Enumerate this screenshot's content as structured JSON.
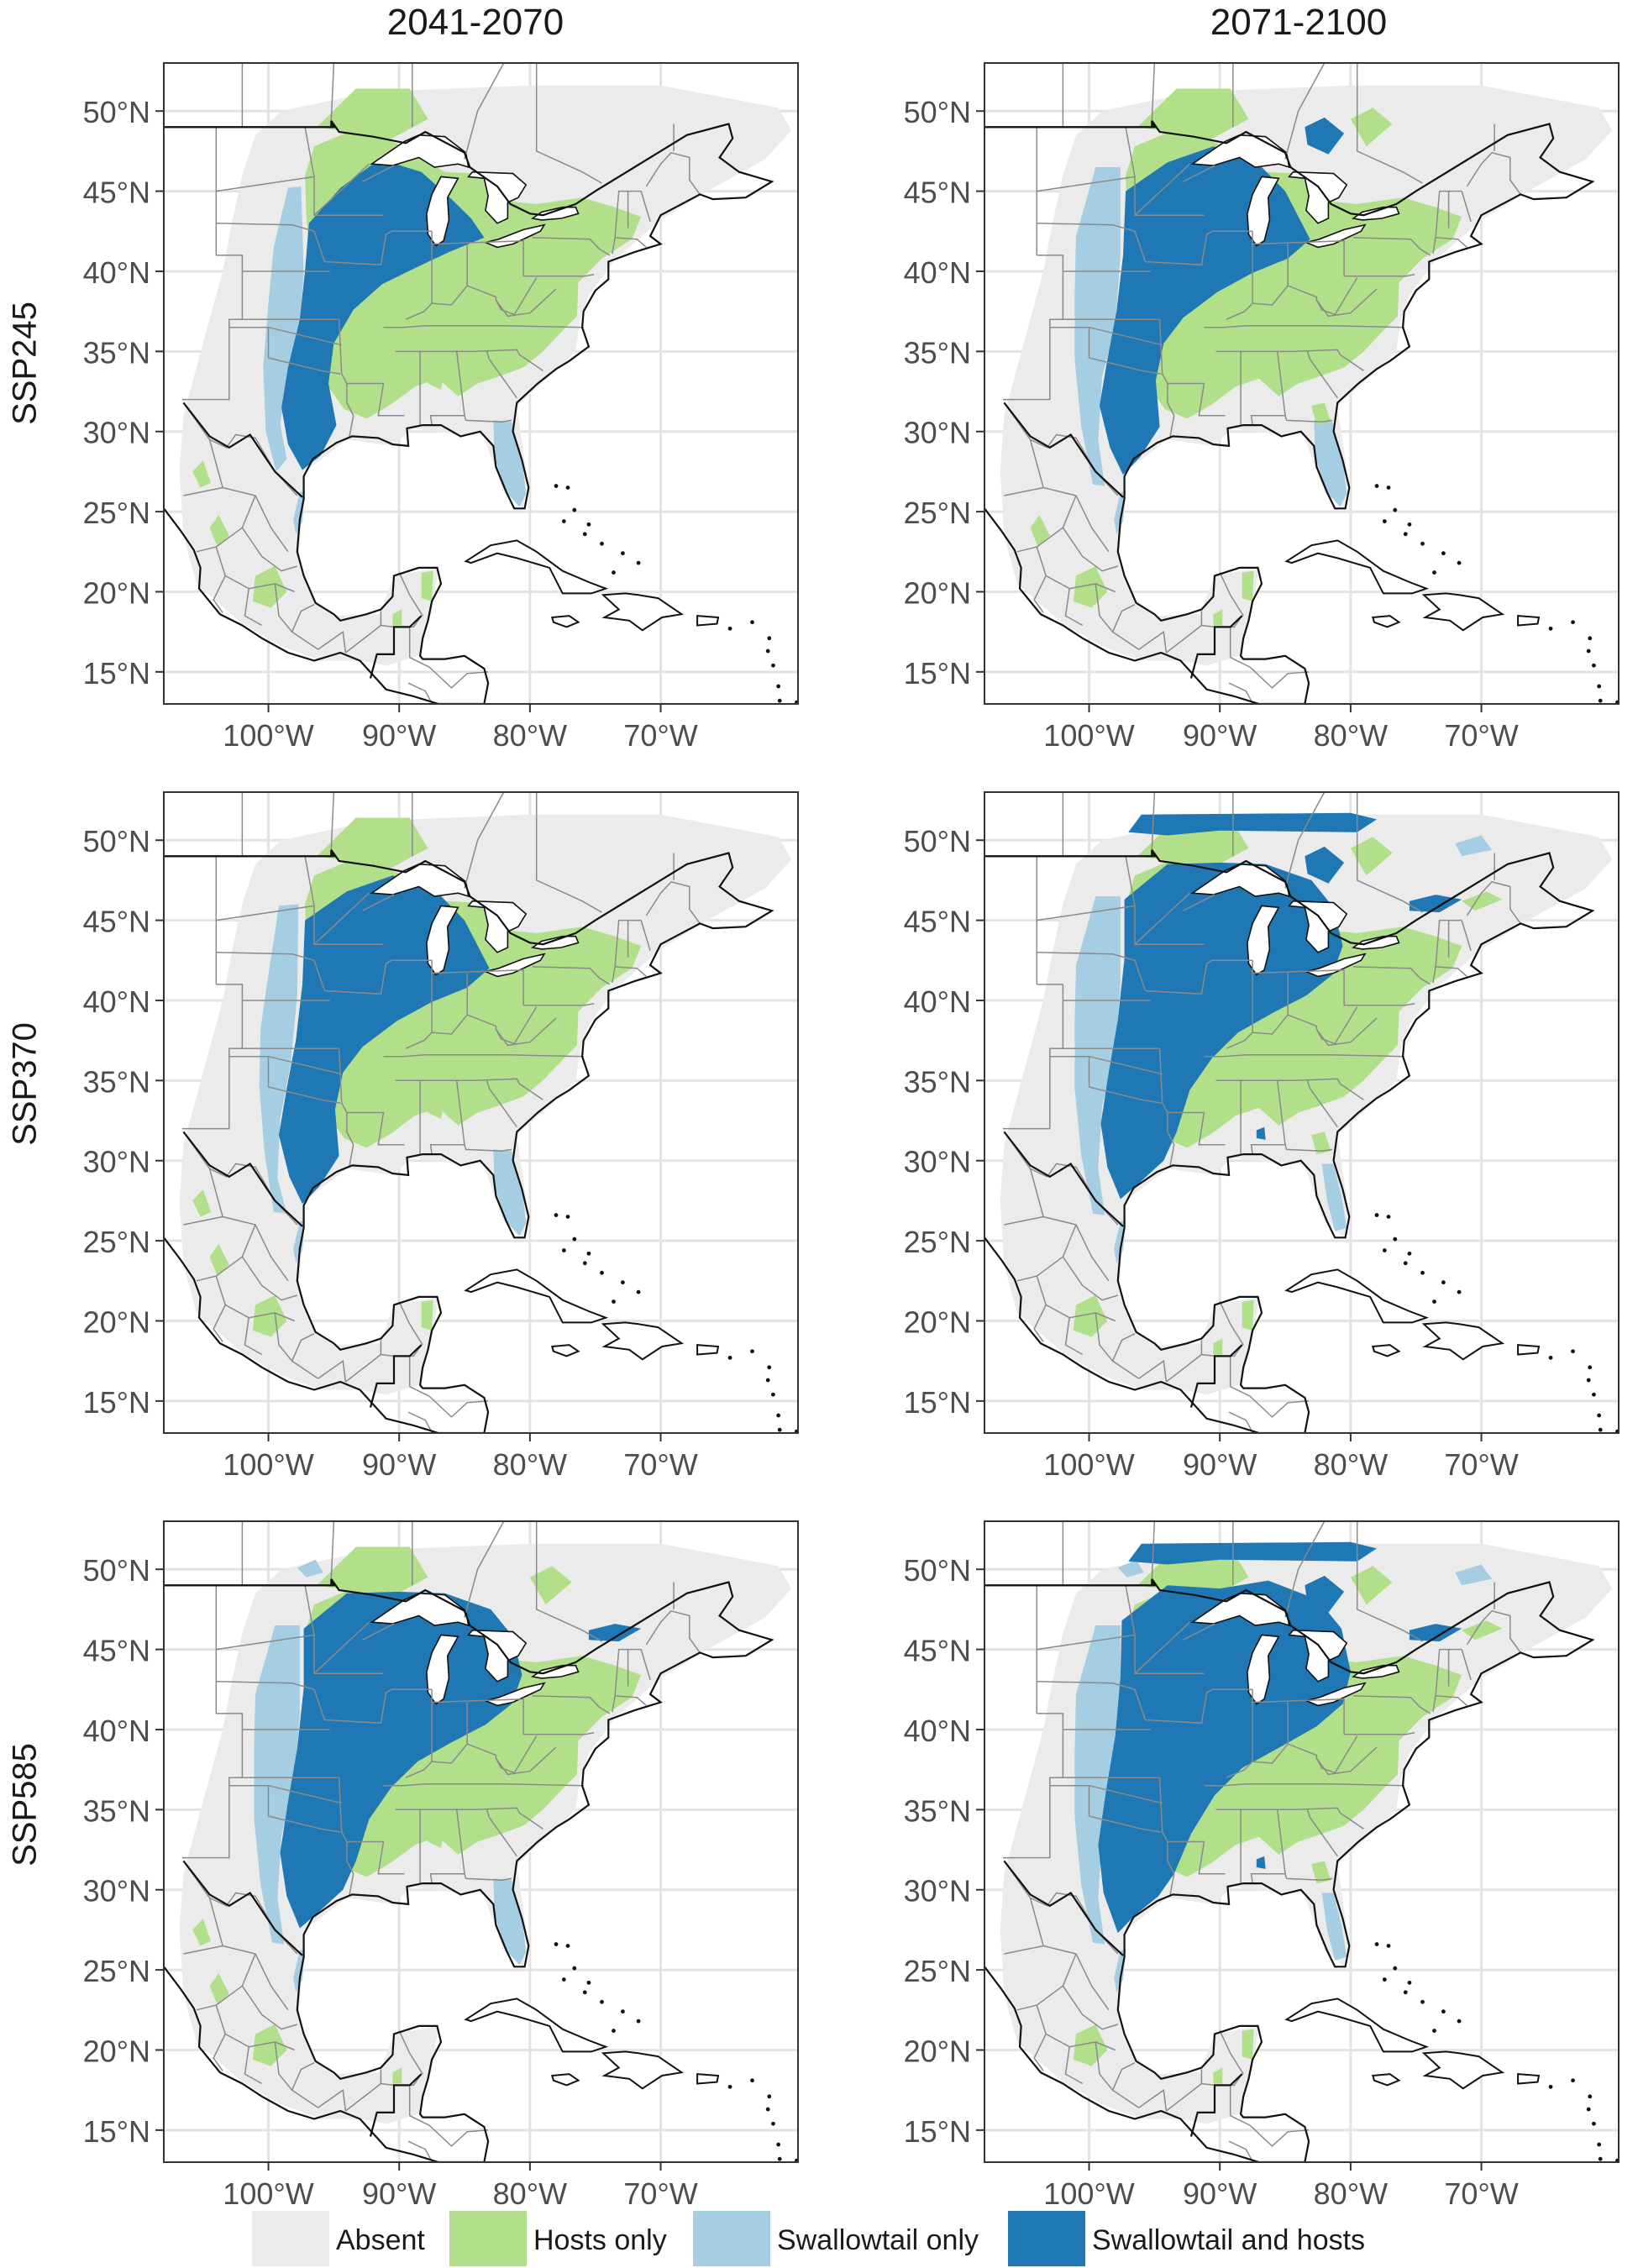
{
  "columns": [
    "2041-2070",
    "2071-2100"
  ],
  "rows": [
    "SSP245",
    "SSP370",
    "SSP585"
  ],
  "axes": {
    "lat_ticks": [
      "50°N",
      "45°N",
      "40°N",
      "35°N",
      "30°N",
      "25°N",
      "20°N",
      "15°N"
    ],
    "lon_ticks": [
      "100°W",
      "90°W",
      "80°W",
      "70°W"
    ],
    "lat_range": [
      13,
      53
    ],
    "lon_range": [
      -108,
      -59.5
    ]
  },
  "legend": [
    {
      "label": "Absent",
      "color": "#ebebeb"
    },
    {
      "label": "Hosts only",
      "color": "#b2df8a"
    },
    {
      "label": "Swallowtail only",
      "color": "#a6cee3"
    },
    {
      "label": "Swallowtail and hosts",
      "color": "#1f78b4"
    }
  ],
  "colors": {
    "grid": "#e3e3e3",
    "panel_border": "#333333",
    "coast": "#111111",
    "state_border": "#8a8a8a",
    "water": "#ffffff"
  }
}
